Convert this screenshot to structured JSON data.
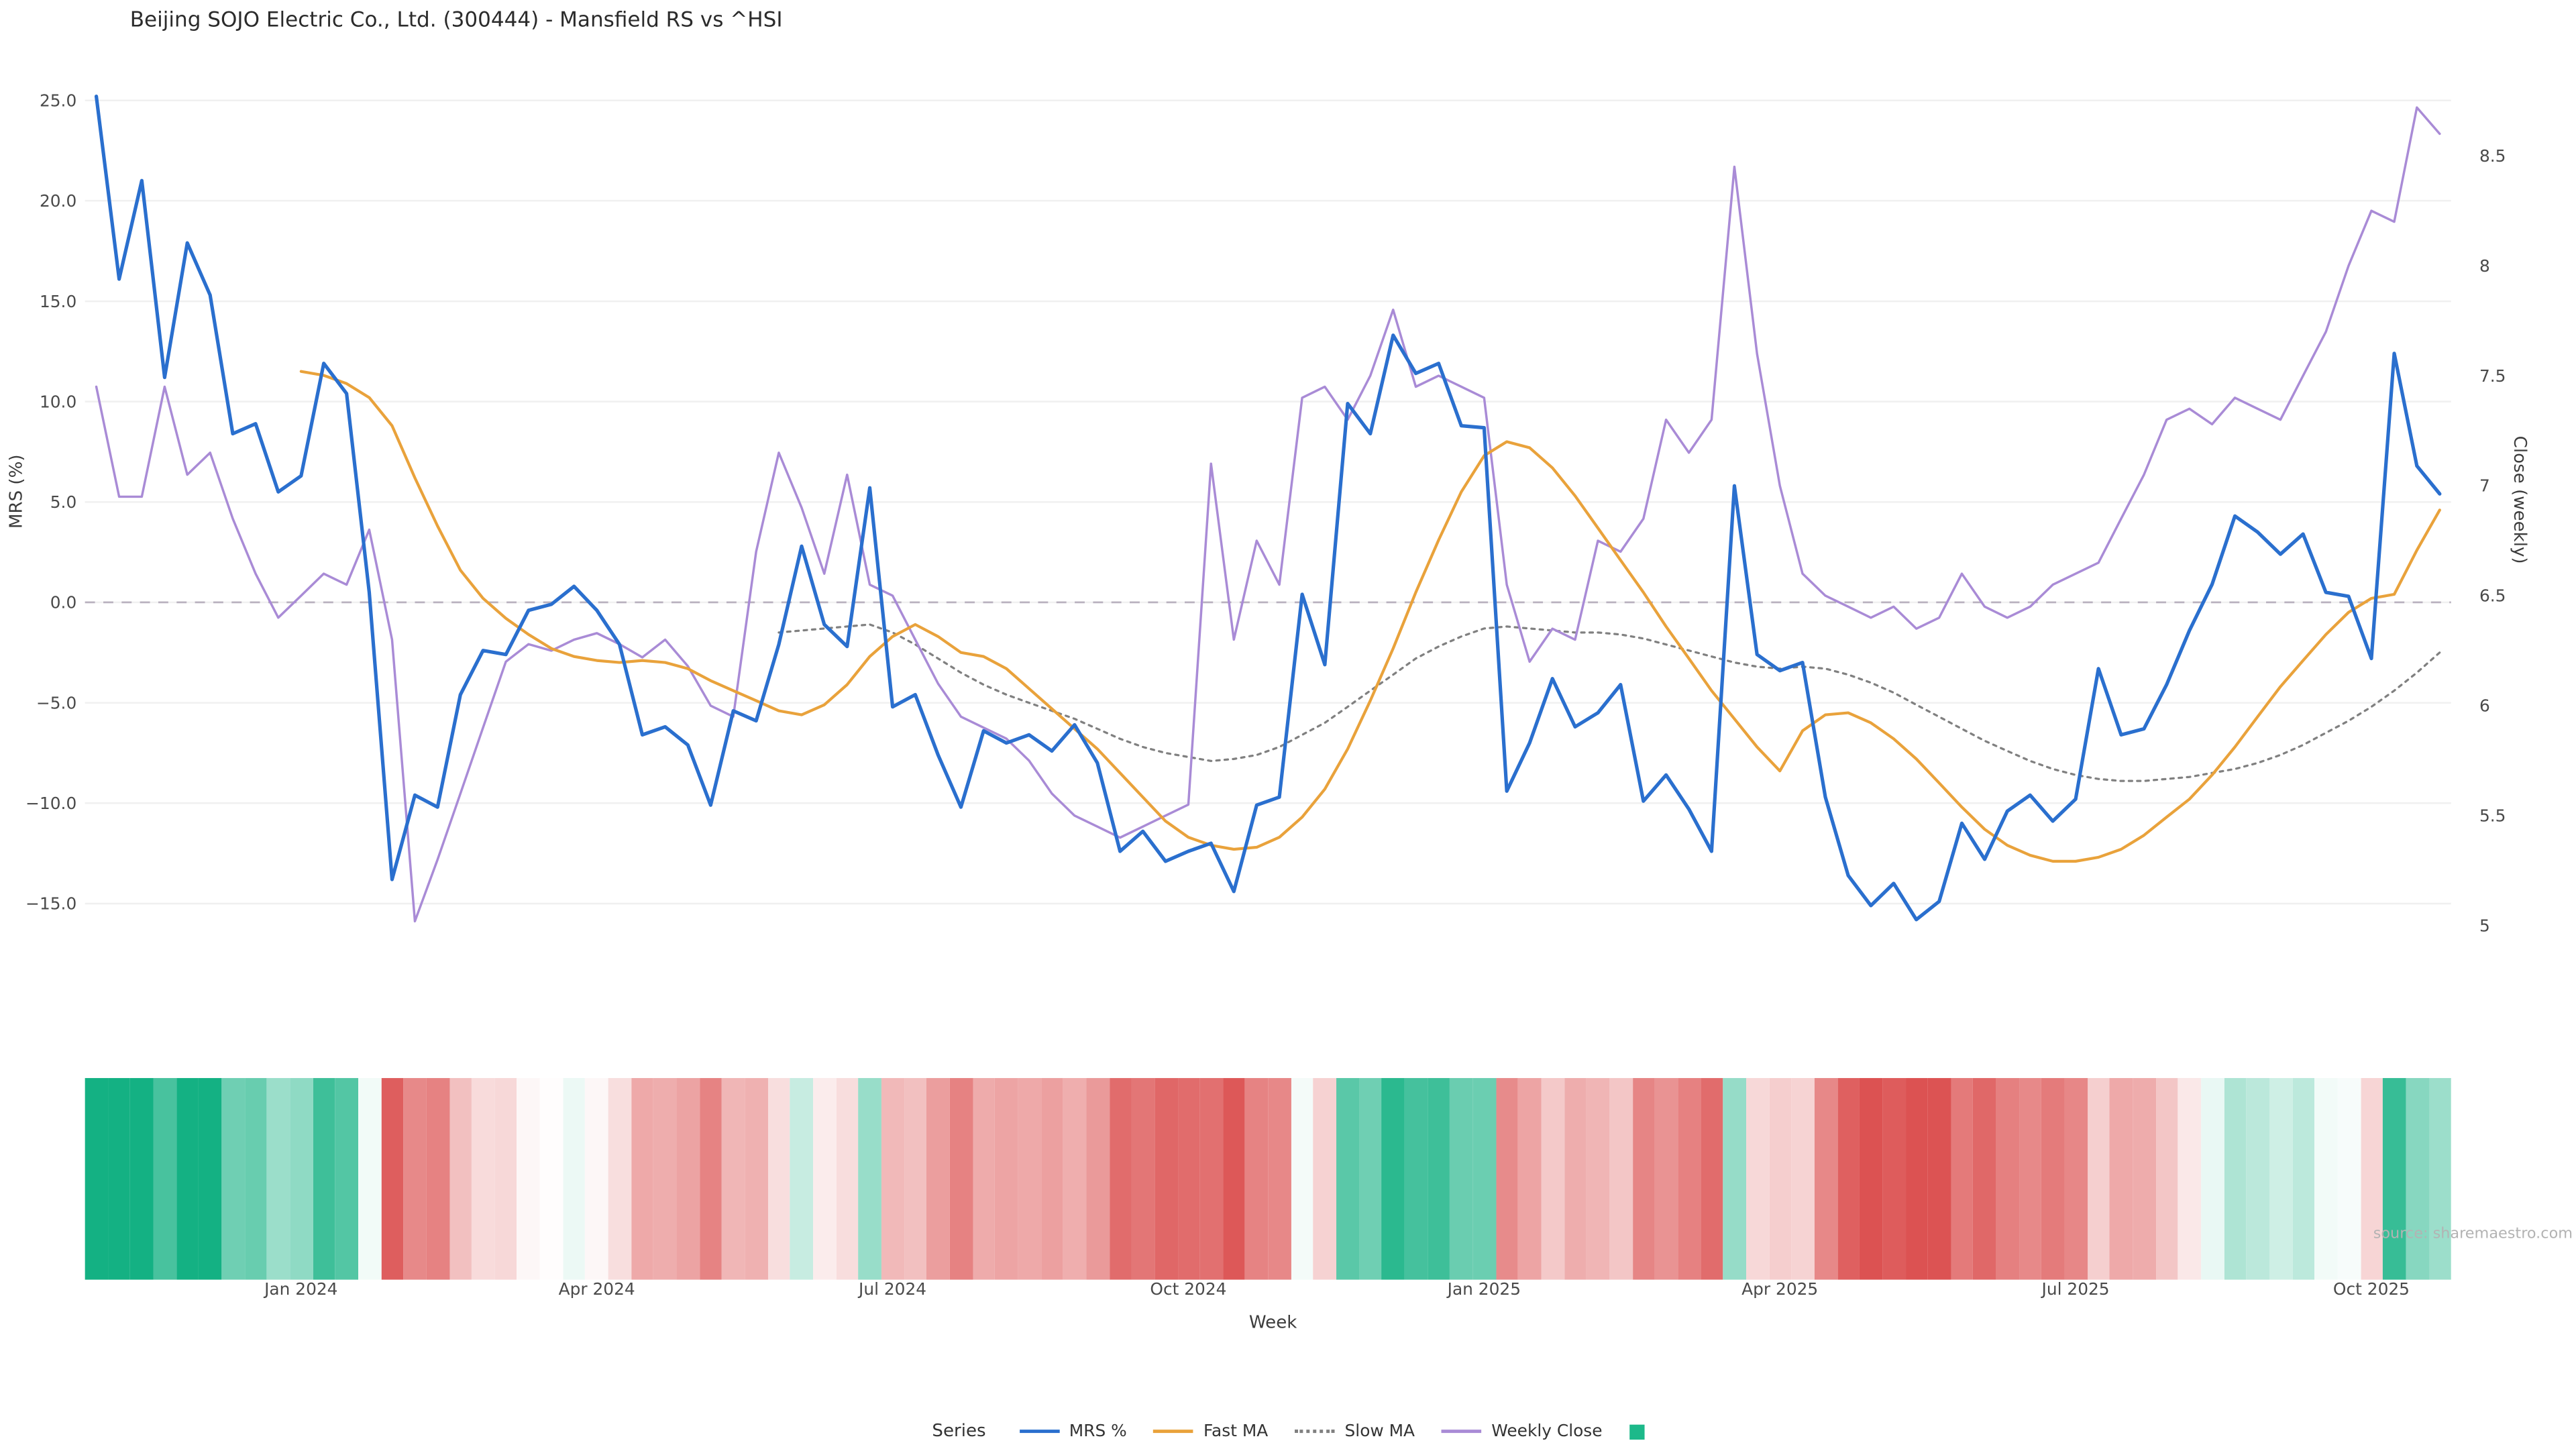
{
  "title": "Beijing SOJO Electric Co., Ltd. (300444) - Mansfield RS vs ^HSI",
  "source": "source: sharemaestro.com",
  "legend": {
    "title": "Series",
    "items": [
      {
        "label": "MRS %",
        "color": "#2a6fce",
        "style": "solid"
      },
      {
        "label": "Fast MA",
        "color": "#e9a23b",
        "style": "solid"
      },
      {
        "label": "Slow MA",
        "color": "#808080",
        "style": "dotted"
      },
      {
        "label": "Weekly Close",
        "color": "#a98bd6",
        "style": "solid"
      },
      {
        "label": "",
        "color": "#1db98a",
        "style": "square"
      }
    ]
  },
  "chart_data": {
    "type": "line",
    "title": "Beijing SOJO Electric Co., Ltd. (300444) - Mansfield RS vs ^HSI",
    "xlabel": "Week",
    "ylabel_left": "MRS (%)",
    "ylabel_right": "Close (weekly)",
    "ylim_left": [
      -17.5,
      26.5
    ],
    "ylim_right": [
      4.9,
      8.8
    ],
    "zero_line": 0,
    "grid": true,
    "legend_position": "bottom",
    "x_ticks": [
      {
        "label": "Jan 2024",
        "week": 9
      },
      {
        "label": "Apr 2024",
        "week": 22
      },
      {
        "label": "Jul 2024",
        "week": 35
      },
      {
        "label": "Oct 2024",
        "week": 48
      },
      {
        "label": "Jan 2025",
        "week": 61
      },
      {
        "label": "Apr 2025",
        "week": 74
      },
      {
        "label": "Jul 2025",
        "week": 87
      },
      {
        "label": "Oct 2025",
        "week": 100
      }
    ],
    "y_ticks_left": {
      "values": [
        25,
        20,
        15,
        10,
        5,
        0,
        -5,
        -10,
        -15
      ],
      "labels": [
        "25.0",
        "20.0",
        "15.0",
        "10.0",
        "5.0",
        "0.0",
        "−5.0",
        "−10.0",
        "−15.0"
      ]
    },
    "y_ticks_right": {
      "values": [
        8.5,
        8,
        7.5,
        7,
        6.5,
        6,
        5.5,
        5
      ],
      "labels": [
        "8.5",
        "8",
        "7.5",
        "7",
        "6.5",
        "6",
        "5.5",
        "5"
      ]
    },
    "series": [
      {
        "name": "MRS %",
        "axis": "left",
        "color": "#2a6fce",
        "width": 2.1,
        "dash": null,
        "values": [
          25.2,
          16.1,
          21.0,
          11.2,
          17.9,
          15.3,
          8.4,
          8.9,
          5.5,
          6.3,
          11.9,
          10.4,
          0.5,
          -13.8,
          -9.6,
          -10.2,
          -4.6,
          -2.4,
          -2.6,
          -0.4,
          -0.1,
          0.8,
          -0.4,
          -2.1,
          -6.6,
          -6.2,
          -7.1,
          -10.1,
          -5.4,
          -5.9,
          -2.1,
          2.8,
          -1.1,
          -2.2,
          5.7,
          -5.2,
          -4.6,
          -7.6,
          -10.2,
          -6.4,
          -7.0,
          -6.6,
          -7.4,
          -6.1,
          -8.0,
          -12.4,
          -11.4,
          -12.9,
          -12.4,
          -12.0,
          -14.4,
          -10.1,
          -9.7,
          0.4,
          -3.1,
          9.9,
          8.4,
          13.3,
          11.4,
          11.9,
          8.8,
          8.7,
          -9.4,
          -7.0,
          -3.8,
          -6.2,
          -5.5,
          -4.1,
          -9.9,
          -8.6,
          -10.3,
          -12.4,
          5.8,
          -2.6,
          -3.4,
          -3.0,
          -9.7,
          -13.6,
          -15.1,
          -14.0,
          -15.8,
          -14.9,
          -11.0,
          -12.8,
          -10.4,
          -9.6,
          -10.9,
          -9.8,
          -3.3,
          -6.6,
          -6.3,
          -4.1,
          -1.4,
          0.9,
          4.3,
          3.5,
          2.4,
          3.4,
          0.5,
          0.3,
          -2.8,
          12.4,
          6.8,
          5.4
        ]
      },
      {
        "name": "Fast MA",
        "axis": "left",
        "color": "#e9a23b",
        "width": 1.7,
        "dash": null,
        "values": [
          null,
          null,
          null,
          null,
          null,
          null,
          null,
          null,
          null,
          11.5,
          11.3,
          10.9,
          10.2,
          8.8,
          6.2,
          3.8,
          1.6,
          0.2,
          -0.8,
          -1.6,
          -2.3,
          -2.7,
          -2.9,
          -3.0,
          -2.9,
          -3.0,
          -3.3,
          -3.9,
          -4.4,
          -4.9,
          -5.4,
          -5.6,
          -5.1,
          -4.1,
          -2.7,
          -1.7,
          -1.1,
          -1.7,
          -2.5,
          -2.7,
          -3.3,
          -4.3,
          -5.3,
          -6.3,
          -7.3,
          -8.5,
          -9.7,
          -10.9,
          -11.7,
          -12.1,
          -12.3,
          -12.2,
          -11.7,
          -10.7,
          -9.3,
          -7.3,
          -4.9,
          -2.3,
          0.5,
          3.1,
          5.5,
          7.3,
          8.0,
          7.7,
          6.7,
          5.3,
          3.7,
          2.1,
          0.5,
          -1.2,
          -2.8,
          -4.4,
          -5.8,
          -7.2,
          -8.4,
          -6.4,
          -5.6,
          -5.5,
          -6.0,
          -6.8,
          -7.8,
          -9.0,
          -10.2,
          -11.3,
          -12.1,
          -12.6,
          -12.9,
          -12.9,
          -12.7,
          -12.3,
          -11.6,
          -10.7,
          -9.8,
          -8.6,
          -7.2,
          -5.7,
          -4.2,
          -2.9,
          -1.6,
          -0.5,
          0.2,
          0.4,
          2.6,
          4.6
        ]
      },
      {
        "name": "Slow MA",
        "axis": "left",
        "color": "#808080",
        "width": 1.3,
        "dash": "2 3",
        "values": [
          null,
          null,
          null,
          null,
          null,
          null,
          null,
          null,
          null,
          null,
          null,
          null,
          null,
          null,
          null,
          null,
          null,
          null,
          null,
          null,
          null,
          null,
          null,
          null,
          null,
          null,
          null,
          null,
          null,
          null,
          -1.5,
          -1.4,
          -1.3,
          -1.2,
          -1.1,
          -1.5,
          -2.1,
          -2.8,
          -3.5,
          -4.1,
          -4.6,
          -5.0,
          -5.4,
          -5.8,
          -6.3,
          -6.8,
          -7.2,
          -7.5,
          -7.7,
          -7.9,
          -7.8,
          -7.6,
          -7.2,
          -6.6,
          -6.0,
          -5.2,
          -4.4,
          -3.6,
          -2.8,
          -2.2,
          -1.7,
          -1.3,
          -1.2,
          -1.3,
          -1.4,
          -1.5,
          -1.5,
          -1.6,
          -1.8,
          -2.1,
          -2.4,
          -2.7,
          -3.0,
          -3.2,
          -3.3,
          -3.2,
          -3.3,
          -3.6,
          -4.0,
          -4.5,
          -5.1,
          -5.7,
          -6.3,
          -6.9,
          -7.4,
          -7.9,
          -8.3,
          -8.6,
          -8.8,
          -8.9,
          -8.9,
          -8.8,
          -8.7,
          -8.5,
          -8.3,
          -8.0,
          -7.6,
          -7.1,
          -6.5,
          -5.9,
          -5.2,
          -4.4,
          -3.5,
          -2.5
        ]
      },
      {
        "name": "Weekly Close",
        "axis": "right",
        "color": "#a98bd6",
        "width": 1.4,
        "dash": null,
        "values": [
          7.45,
          6.95,
          6.95,
          7.45,
          7.05,
          7.15,
          6.85,
          6.6,
          6.4,
          6.5,
          6.6,
          6.55,
          6.8,
          6.3,
          5.02,
          5.3,
          5.6,
          5.9,
          6.2,
          6.28,
          6.25,
          6.3,
          6.33,
          6.28,
          6.22,
          6.3,
          6.18,
          6.0,
          5.95,
          6.7,
          7.15,
          6.9,
          6.6,
          7.05,
          6.55,
          6.5,
          6.3,
          6.1,
          5.95,
          5.9,
          5.85,
          5.75,
          5.6,
          5.5,
          5.45,
          5.4,
          5.45,
          5.5,
          5.55,
          7.1,
          6.3,
          6.75,
          6.55,
          7.4,
          7.45,
          7.3,
          7.5,
          7.8,
          7.45,
          7.5,
          7.45,
          7.4,
          6.55,
          6.2,
          6.35,
          6.3,
          6.75,
          6.7,
          6.85,
          7.3,
          7.15,
          7.3,
          8.45,
          7.6,
          7.0,
          6.6,
          6.5,
          6.45,
          6.4,
          6.45,
          6.35,
          6.4,
          6.6,
          6.45,
          6.4,
          6.45,
          6.55,
          6.6,
          6.65,
          6.85,
          7.05,
          7.3,
          7.35,
          7.28,
          7.4,
          7.35,
          7.3,
          7.5,
          7.7,
          8.0,
          8.25,
          8.2,
          8.72,
          8.6
        ]
      }
    ],
    "heatmap": {
      "basis": "MRS %",
      "positive_color": "#14b183",
      "negative_color": "#dc5252",
      "max_abs": 15
    }
  }
}
